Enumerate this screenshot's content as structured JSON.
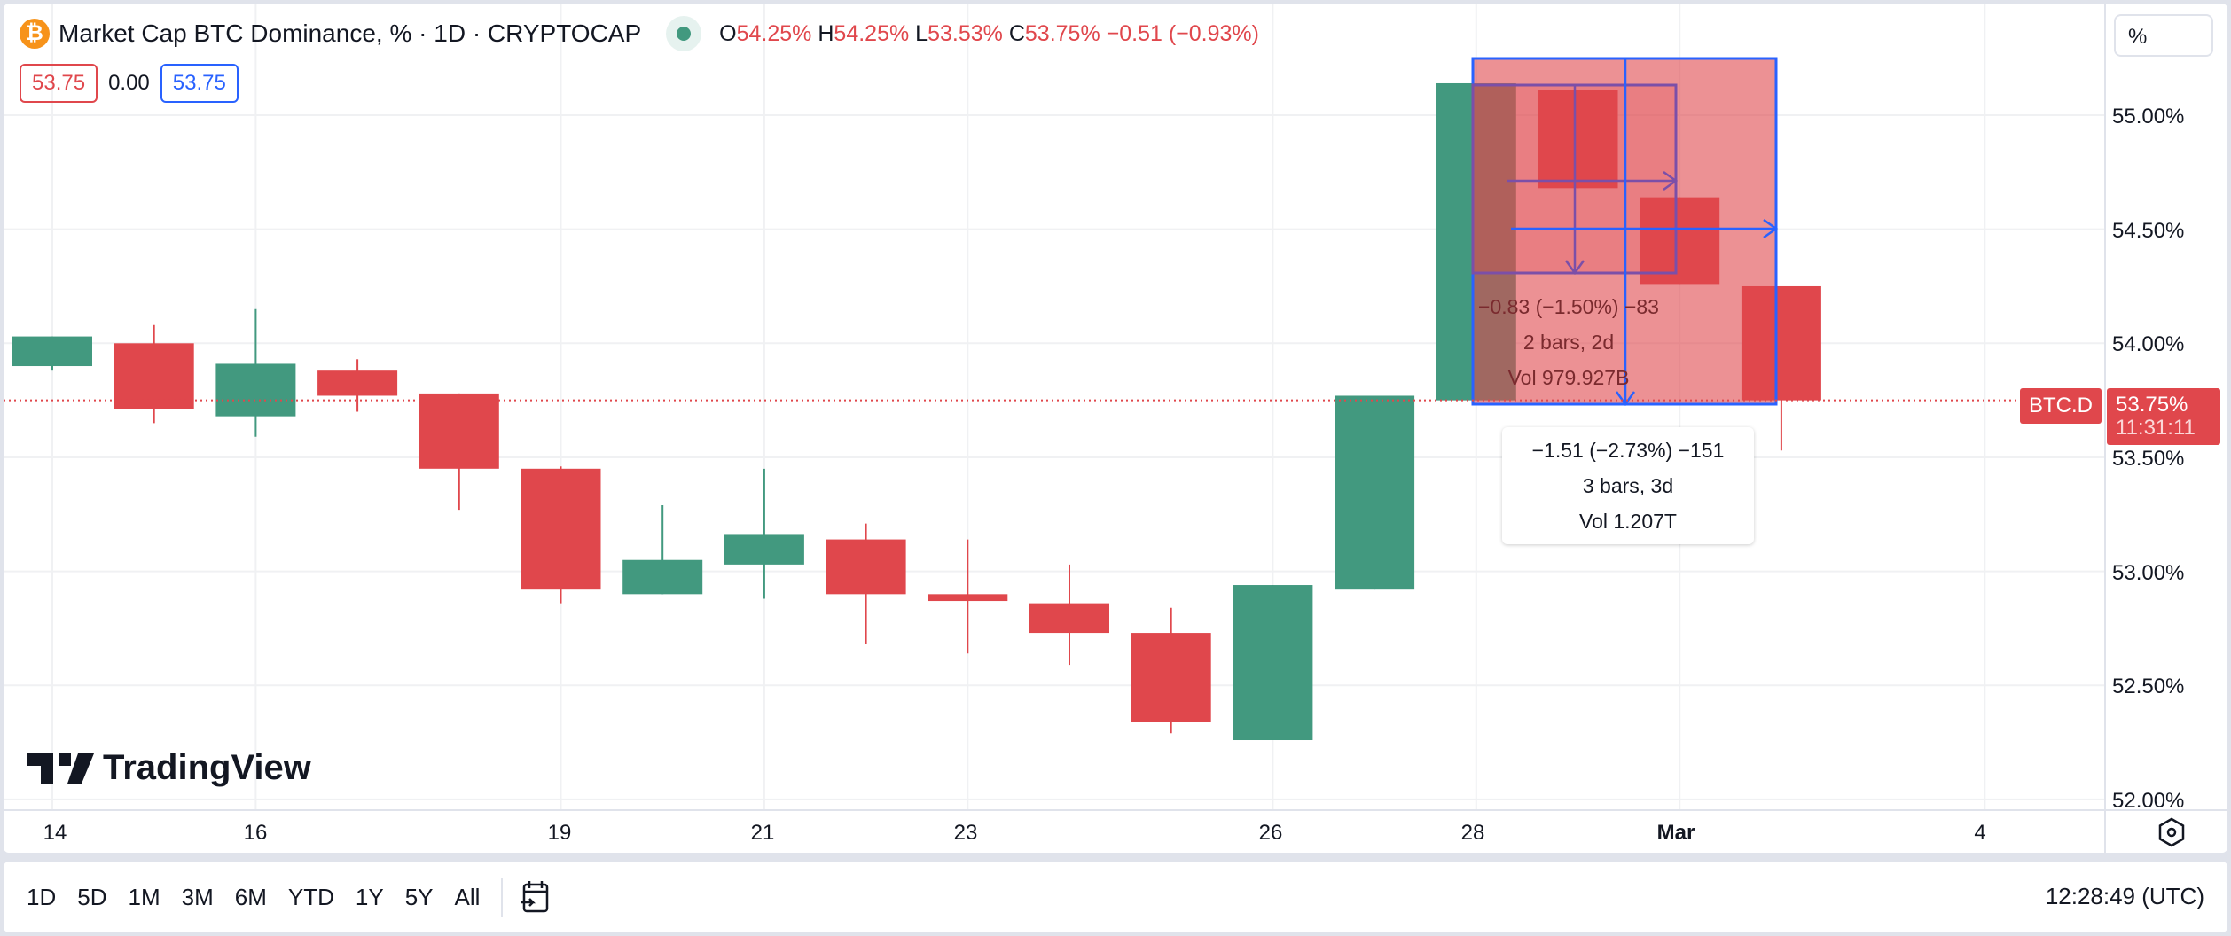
{
  "header": {
    "title": "Market Cap BTC Dominance, % · 1D · CRYPTOCAP",
    "icon": "bitcoin-icon",
    "status": "market-open-dot",
    "ohlc": {
      "o_label": "O",
      "o": "54.25%",
      "h_label": "H",
      "h": "54.25%",
      "l_label": "L",
      "l": "53.53%",
      "c_label": "C",
      "c": "53.75%",
      "change": "−0.51 (−0.93%)"
    }
  },
  "values": {
    "sell": "53.75",
    "spread": "0.00",
    "buy": "53.75"
  },
  "scale_button": "%",
  "colors": {
    "up": "#42997f",
    "down": "#e0474c",
    "accent": "#2962ff"
  },
  "chart_data": {
    "type": "candlestick",
    "x": [
      "14",
      "15",
      "16",
      "17",
      "18",
      "19",
      "20",
      "21",
      "22",
      "23",
      "24",
      "25",
      "26",
      "27",
      "28",
      "29",
      "Mar 1",
      "Mar 2"
    ],
    "open": [
      53.9,
      54.0,
      53.68,
      53.88,
      53.78,
      53.45,
      52.9,
      53.03,
      53.14,
      52.9,
      52.86,
      52.73,
      52.26,
      52.92,
      53.75,
      55.11,
      54.64,
      54.25
    ],
    "high": [
      54.03,
      54.08,
      54.15,
      53.93,
      53.78,
      53.46,
      53.29,
      53.45,
      53.21,
      53.14,
      53.03,
      52.84,
      52.94,
      53.77,
      55.14,
      55.11,
      54.64,
      54.25
    ],
    "low": [
      53.88,
      53.65,
      53.59,
      53.7,
      53.27,
      52.86,
      52.9,
      52.88,
      52.68,
      52.64,
      52.59,
      52.29,
      52.26,
      52.92,
      53.75,
      54.68,
      54.26,
      53.53
    ],
    "close": [
      54.03,
      53.71,
      53.91,
      53.77,
      53.45,
      52.92,
      53.05,
      53.16,
      52.9,
      52.87,
      52.73,
      52.34,
      52.94,
      53.77,
      55.14,
      54.68,
      54.26,
      53.75
    ],
    "ylim": [
      51.9,
      55.5
    ],
    "y_ticks": [
      "55.00%",
      "54.50%",
      "54.00%",
      "53.50%",
      "53.00%",
      "52.50%",
      "52.00%"
    ],
    "x_ticks": [
      "14",
      "16",
      "19",
      "21",
      "23",
      "26",
      "28",
      "Mar",
      "4"
    ],
    "last_price": {
      "symbol": "BTC.D",
      "value": "53.75%",
      "countdown": "11:31:11"
    }
  },
  "measure": [
    {
      "line1": "−0.83 (−1.50%) −83",
      "line2": "2 bars, 2d",
      "line3": "Vol 979.927B"
    },
    {
      "line1": "−1.51 (−2.73%) −151",
      "line2": "3 bars, 3d",
      "line3": "Vol 1.207T"
    }
  ],
  "logo": "TradingView",
  "toolbar": {
    "ranges": [
      "1D",
      "5D",
      "1M",
      "3M",
      "6M",
      "YTD",
      "1Y",
      "5Y",
      "All"
    ],
    "goto_icon": "calendar-goto-icon",
    "clock": "12:28:49 (UTC)"
  },
  "settings_icon": "gear-hex-icon"
}
